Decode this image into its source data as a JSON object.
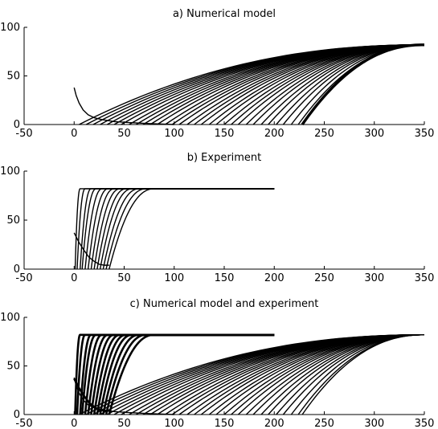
{
  "chart_data": [
    {
      "type": "line",
      "title": "a) Numerical model",
      "xlabel": "",
      "ylabel": "",
      "xlim": [
        -50,
        350
      ],
      "ylim": [
        0,
        100
      ],
      "xticks": [
        -50,
        0,
        50,
        100,
        150,
        200,
        250,
        300,
        350
      ],
      "yticks": [
        0,
        50,
        100
      ],
      "grid": false,
      "legend": "none",
      "plateau": 82,
      "series": [
        {
          "kind": "front_family",
          "style": "thin",
          "x_start": [
            5,
            12,
            19,
            26,
            33,
            40,
            47,
            55,
            62,
            69,
            76,
            83,
            91,
            98,
            105,
            113,
            120,
            127,
            135,
            142,
            150,
            157,
            164,
            172,
            179,
            187,
            194,
            202,
            209,
            217,
            224
          ],
          "x_end": 350,
          "y_top": 82
        },
        {
          "kind": "front",
          "style": "thick",
          "x_start": 228,
          "x_end": 350,
          "y_top": 82
        },
        {
          "kind": "decay",
          "style": "thin",
          "x": [
            0,
            2,
            5,
            9,
            14,
            20,
            28,
            40,
            55,
            75,
            100
          ],
          "y": [
            38,
            30,
            22,
            15,
            10,
            7,
            5,
            3,
            2,
            1,
            0
          ]
        }
      ]
    },
    {
      "type": "line",
      "title": "b) Experiment",
      "xlabel": "",
      "ylabel": "",
      "xlim": [
        -50,
        350
      ],
      "ylim": [
        0,
        100
      ],
      "xticks": [
        -50,
        0,
        50,
        100,
        150,
        200,
        250,
        300,
        350
      ],
      "yticks": [
        0,
        50,
        100
      ],
      "grid": false,
      "legend": "none",
      "plateau": 82,
      "series": [
        {
          "kind": "front_family",
          "style": "thin",
          "x_start": [
            1,
            3,
            6,
            8,
            11,
            14,
            17,
            20,
            23,
            26,
            29,
            32,
            35
          ],
          "x_end": [
            200,
            200,
            200,
            200,
            200,
            200,
            200,
            200,
            200,
            200,
            200,
            200,
            200
          ],
          "span": [
            5,
            8,
            11,
            14,
            17,
            20,
            23,
            26,
            29,
            32,
            36,
            40,
            45
          ],
          "y_top": 82
        },
        {
          "kind": "decay",
          "style": "thin",
          "x": [
            0,
            5,
            10,
            15,
            20,
            25,
            30,
            35
          ],
          "y": [
            37,
            27,
            19,
            12,
            8,
            5,
            4,
            4
          ]
        }
      ]
    },
    {
      "type": "line",
      "title": "c) Numerical model and experiment",
      "xlabel": "",
      "ylabel": "",
      "xlim": [
        -50,
        350
      ],
      "ylim": [
        0,
        100
      ],
      "xticks": [
        -50,
        0,
        50,
        100,
        150,
        200,
        250,
        300,
        350
      ],
      "yticks": [
        0,
        50,
        100
      ],
      "grid": false,
      "legend": "none",
      "plateau": 82,
      "series": [
        {
          "kind": "front_family",
          "style": "thin",
          "x_start": [
            5,
            12,
            19,
            26,
            33,
            40,
            47,
            55,
            62,
            69,
            76,
            83,
            91,
            98,
            105,
            113,
            120,
            127,
            135,
            142,
            150,
            157,
            164,
            172,
            179,
            187,
            194,
            202,
            209,
            217,
            224,
            228
          ],
          "x_end": 350,
          "y_top": 82
        },
        {
          "kind": "front_family",
          "style": "thick",
          "x_start": [
            1,
            3,
            6,
            8,
            11,
            14,
            17,
            20,
            23,
            26,
            29,
            32,
            35
          ],
          "x_end": [
            200,
            200,
            200,
            200,
            200,
            200,
            200,
            200,
            200,
            200,
            200,
            200,
            200
          ],
          "span": [
            5,
            8,
            11,
            14,
            17,
            20,
            23,
            26,
            29,
            32,
            36,
            40,
            45
          ],
          "y_top": 82
        },
        {
          "kind": "decay",
          "style": "thin",
          "x": [
            0,
            2,
            5,
            9,
            14,
            20,
            28,
            40,
            55,
            75,
            100
          ],
          "y": [
            38,
            30,
            22,
            15,
            10,
            7,
            5,
            3,
            2,
            1,
            0
          ]
        },
        {
          "kind": "decay",
          "style": "thick",
          "x": [
            0,
            5,
            10,
            15,
            20,
            25,
            30,
            35
          ],
          "y": [
            37,
            27,
            19,
            12,
            8,
            5,
            4,
            4
          ]
        }
      ]
    }
  ]
}
